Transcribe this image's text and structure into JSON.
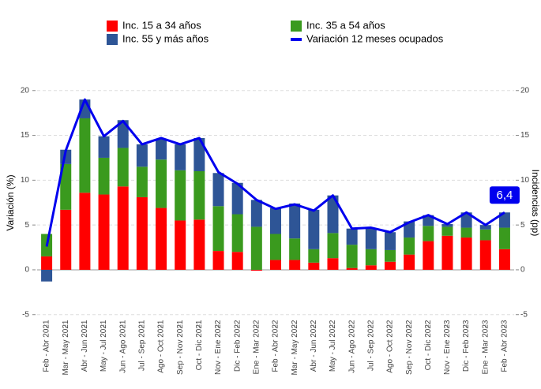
{
  "chart_data": {
    "type": "bar",
    "stacked": true,
    "y_label": "Variación (%)",
    "y2_label": "Incidencias (pp)",
    "categories": [
      "Feb - Abr 2021",
      "Mar - May 2021",
      "Abr - Jun 2021",
      "May - Jul 2021",
      "Jun - Ago 2021",
      "Jul - Sep 2021",
      "Ago - Oct 2021",
      "Sep - Nov 2021",
      "Oct - Dic 2021",
      "Nov - Ene 2022",
      "Dic - Feb 2022",
      "Ene - Mar 2022",
      "Feb - Abr 2022",
      "Mar - May 2022",
      "Abr - Jun 2022",
      "May - Jul 2022",
      "Jun - Ago 2022",
      "Jul - Sep 2022",
      "Ago - Oct 2022",
      "Sep - Nov 2022",
      "Oct - Dic 2022",
      "Nov - Ene 2023",
      "Dic - Feb 2023",
      "Ene - Mar 2023",
      "Feb - Abr 2023"
    ],
    "series": [
      {
        "name": "Inc. 15 a 34 años",
        "color": "#ff0000",
        "values": [
          1.5,
          6.7,
          8.6,
          8.4,
          9.3,
          8.1,
          6.9,
          5.5,
          5.6,
          2.1,
          2.0,
          -0.1,
          1.1,
          1.1,
          0.8,
          1.3,
          0.2,
          0.5,
          0.9,
          1.7,
          3.2,
          3.8,
          3.6,
          3.3,
          2.3
        ]
      },
      {
        "name": "Inc. 35 a 54 años",
        "color": "#3a9a1e",
        "values": [
          2.5,
          5.1,
          8.3,
          4.1,
          4.3,
          3.4,
          5.4,
          5.6,
          5.4,
          5.0,
          4.2,
          4.8,
          2.9,
          2.4,
          1.5,
          2.8,
          2.6,
          1.8,
          1.3,
          1.9,
          1.7,
          1.0,
          1.1,
          1.2,
          2.4
        ]
      },
      {
        "name": "Inc. 55 y más años",
        "color": "#2e5596",
        "values": [
          -1.3,
          1.6,
          2.1,
          2.4,
          3.1,
          2.5,
          2.3,
          2.9,
          3.7,
          3.7,
          3.5,
          3.0,
          2.9,
          3.9,
          4.4,
          4.2,
          1.8,
          2.3,
          2.0,
          1.8,
          1.2,
          0.3,
          1.7,
          0.5,
          1.7
        ]
      },
      {
        "name": "Variación 12 meses ocupados",
        "type": "line",
        "color": "#0000ee",
        "values": [
          2.6,
          13.3,
          19.0,
          14.9,
          16.6,
          14.0,
          14.7,
          14.0,
          14.7,
          10.9,
          9.6,
          7.8,
          6.8,
          7.3,
          6.6,
          8.3,
          4.6,
          4.7,
          4.2,
          5.3,
          6.1,
          5.1,
          6.4,
          5.0,
          6.4
        ]
      }
    ],
    "annotations": [
      {
        "text": "6,4",
        "series": 3,
        "index": 24
      }
    ],
    "ylim": [
      -6.3,
      21.3
    ],
    "yticks": [
      -5,
      0,
      5,
      10,
      15,
      20
    ],
    "y2lim": [
      -6.3,
      21.3
    ],
    "y2ticks": [
      -5,
      0,
      5,
      10,
      15,
      20
    ],
    "grid": true
  }
}
